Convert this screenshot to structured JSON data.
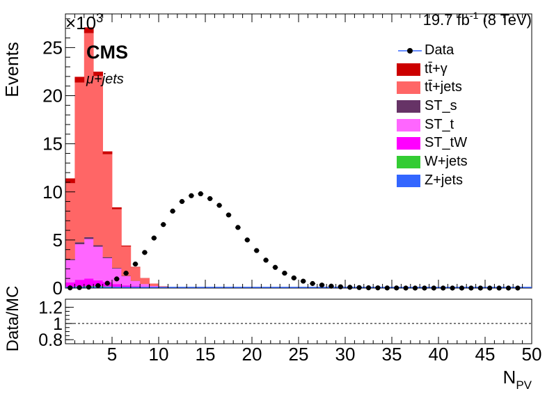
{
  "header": {
    "lumi_prefix": "19.7 fb",
    "lumi_exp": "-1",
    "lumi_suffix": "(8 TeV)",
    "experiment": "CMS",
    "channel": "μ+jets",
    "y_multiplier_prefix": "×10",
    "y_multiplier_exp": "3"
  },
  "chart_data": [
    {
      "type": "bar",
      "stacked": true,
      "ylabel": "Events",
      "xlabel": "N",
      "xlabel_sub": "PV",
      "xlim": [
        0,
        50
      ],
      "ylim": [
        0,
        28.5
      ],
      "y_unit_scale": 1000,
      "bin_edges_start": 0,
      "bin_width": 1,
      "x_ticks": [
        "5",
        "10",
        "15",
        "20",
        "25",
        "30",
        "35",
        "40",
        "45",
        "50"
      ],
      "y_ticks": [
        "0",
        "5",
        "10",
        "15",
        "20",
        "25"
      ],
      "grid": false,
      "legend_position": "top-right",
      "legend": [
        "Data",
        "tt̄+γ",
        "tt̄+jets",
        "ST_s",
        "ST_t",
        "ST_tW",
        "W+jets",
        "Z+jets"
      ],
      "series": [
        {
          "name": "Z+jets",
          "color": "#3366ff",
          "values": [
            0.05,
            0.08,
            0.1,
            0.1,
            0.08,
            0.06,
            0.04,
            0.03,
            0.02,
            0.01,
            0,
            0,
            0,
            0,
            0,
            0,
            0,
            0,
            0,
            0,
            0,
            0,
            0,
            0,
            0,
            0,
            0,
            0,
            0,
            0,
            0,
            0,
            0,
            0,
            0,
            0,
            0,
            0,
            0,
            0,
            0,
            0,
            0,
            0,
            0,
            0,
            0,
            0,
            0,
            0
          ]
        },
        {
          "name": "W+jets",
          "color": "#33cc33",
          "values": [
            0.05,
            0.08,
            0.1,
            0.1,
            0.08,
            0.06,
            0.04,
            0.03,
            0.02,
            0.01,
            0,
            0,
            0,
            0,
            0,
            0,
            0,
            0,
            0,
            0,
            0,
            0,
            0,
            0,
            0,
            0,
            0,
            0,
            0,
            0,
            0,
            0,
            0,
            0,
            0,
            0,
            0,
            0,
            0,
            0,
            0,
            0,
            0,
            0,
            0,
            0,
            0,
            0,
            0,
            0
          ]
        },
        {
          "name": "ST_tW",
          "color": "#ff00ff",
          "values": [
            0.5,
            0.7,
            0.8,
            0.6,
            0.45,
            0.3,
            0.2,
            0.12,
            0.07,
            0.04,
            0.02,
            0.01,
            0,
            0,
            0,
            0,
            0,
            0,
            0,
            0,
            0,
            0,
            0,
            0,
            0,
            0,
            0,
            0,
            0,
            0,
            0,
            0,
            0,
            0,
            0,
            0,
            0,
            0,
            0,
            0,
            0,
            0,
            0,
            0,
            0,
            0,
            0,
            0,
            0,
            0
          ]
        },
        {
          "name": "ST_t",
          "color": "#ff66ff",
          "values": [
            2.3,
            3.7,
            4.1,
            3.5,
            2.5,
            1.6,
            0.95,
            0.55,
            0.3,
            0.16,
            0.08,
            0.04,
            0.02,
            0.01,
            0,
            0,
            0,
            0,
            0,
            0,
            0,
            0,
            0,
            0,
            0,
            0,
            0,
            0,
            0,
            0,
            0,
            0,
            0,
            0,
            0,
            0,
            0,
            0,
            0,
            0,
            0,
            0,
            0,
            0,
            0,
            0,
            0,
            0,
            0,
            0
          ]
        },
        {
          "name": "ST_s",
          "color": "#663366",
          "values": [
            0.1,
            0.2,
            0.2,
            0.15,
            0.1,
            0.07,
            0.04,
            0.02,
            0.01,
            0,
            0,
            0,
            0,
            0,
            0,
            0,
            0,
            0,
            0,
            0,
            0,
            0,
            0,
            0,
            0,
            0,
            0,
            0,
            0,
            0,
            0,
            0,
            0,
            0,
            0,
            0,
            0,
            0,
            0,
            0,
            0,
            0,
            0,
            0,
            0,
            0,
            0,
            0,
            0,
            0
          ]
        },
        {
          "name": "tt̄+jets",
          "color": "#ff6666",
          "values": [
            7.9,
            16.6,
            21.2,
            17.6,
            10.7,
            6.1,
            3.05,
            1.4,
            0.6,
            0.24,
            0.09,
            0.04,
            0.02,
            0.01,
            0,
            0,
            0,
            0,
            0,
            0,
            0,
            0,
            0,
            0,
            0,
            0,
            0,
            0,
            0,
            0,
            0,
            0,
            0,
            0,
            0,
            0,
            0,
            0,
            0,
            0,
            0,
            0,
            0,
            0,
            0,
            0,
            0,
            0,
            0,
            0
          ]
        },
        {
          "name": "tt̄+γ",
          "color": "#cc0000",
          "values": [
            0.5,
            0.6,
            0.6,
            0.45,
            0.3,
            0.2,
            0.1,
            0.05,
            0.02,
            0.01,
            0,
            0,
            0,
            0,
            0,
            0,
            0,
            0,
            0,
            0,
            0,
            0,
            0,
            0,
            0,
            0,
            0,
            0,
            0,
            0,
            0,
            0,
            0,
            0,
            0,
            0,
            0,
            0,
            0,
            0,
            0,
            0,
            0,
            0,
            0,
            0,
            0,
            0,
            0,
            0
          ]
        }
      ],
      "data": {
        "name": "Data",
        "color": "#000000",
        "x": [
          1,
          2,
          3,
          4,
          5,
          6,
          7,
          8,
          9,
          10,
          11,
          12,
          13,
          14,
          15,
          16,
          17,
          18,
          19,
          20,
          21,
          22,
          23,
          24,
          25,
          26,
          27,
          28,
          29,
          30,
          31,
          32,
          33,
          34,
          35,
          36,
          37,
          38,
          39,
          40,
          41,
          42,
          43,
          44,
          45,
          46,
          47,
          48,
          49
        ],
        "y": [
          0.02,
          0.05,
          0.1,
          0.25,
          0.5,
          0.95,
          1.55,
          2.5,
          3.7,
          5.2,
          6.6,
          8.0,
          9.0,
          9.6,
          9.8,
          9.3,
          8.6,
          7.6,
          6.3,
          5.0,
          3.9,
          2.9,
          2.15,
          1.55,
          1.05,
          0.72,
          0.47,
          0.31,
          0.2,
          0.13,
          0.08,
          0.05,
          0.03,
          0.02,
          0.01,
          0.01,
          0,
          0,
          0,
          0,
          0,
          0,
          0,
          0,
          0,
          0,
          0,
          0,
          0
        ]
      }
    },
    {
      "type": "line",
      "ylabel": "Data/MC",
      "xlim": [
        0,
        50
      ],
      "ylim": [
        0.75,
        1.3
      ],
      "y_ticks": [
        "0.8",
        "1",
        "1.2"
      ],
      "reference_line": 1
    }
  ]
}
